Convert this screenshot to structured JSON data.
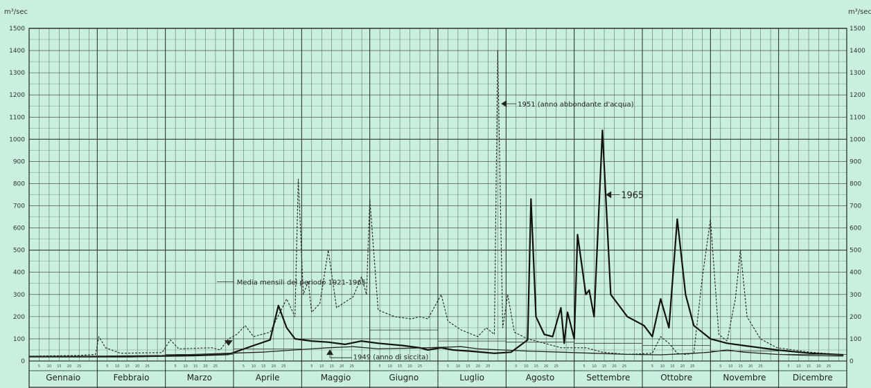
{
  "chart_data": {
    "type": "line",
    "y_unit": "m³/sec",
    "ylim": [
      0,
      1500
    ],
    "y_ticks": [
      0,
      100,
      200,
      300,
      400,
      500,
      600,
      700,
      800,
      900,
      1000,
      1100,
      1200,
      1300,
      1400,
      1500
    ],
    "grid": true,
    "months": [
      "Gennaio",
      "Febbraio",
      "Marzo",
      "Aprile",
      "Maggio",
      "Giugno",
      "Luglio",
      "Agosto",
      "Settembre",
      "Ottobre",
      "Novembre",
      "Dicembre"
    ],
    "day_ticks": [
      "5",
      "10",
      "15",
      "20",
      "25"
    ],
    "series": [
      {
        "name": "1951 (anno abbondante d'acqua)",
        "style": "dashed",
        "points": [
          [
            0,
            22
          ],
          [
            30,
            25
          ],
          [
            40,
            30
          ],
          [
            42,
            110
          ],
          [
            46,
            60
          ],
          [
            55,
            35
          ],
          [
            80,
            38
          ],
          [
            85,
            95
          ],
          [
            90,
            55
          ],
          [
            110,
            60
          ],
          [
            115,
            50
          ],
          [
            120,
            100
          ],
          [
            125,
            120
          ],
          [
            130,
            160
          ],
          [
            135,
            110
          ],
          [
            145,
            130
          ],
          [
            155,
            280
          ],
          [
            160,
            200
          ],
          [
            162,
            820
          ],
          [
            165,
            300
          ],
          [
            168,
            360
          ],
          [
            170,
            220
          ],
          [
            175,
            260
          ],
          [
            180,
            500
          ],
          [
            185,
            240
          ],
          [
            195,
            290
          ],
          [
            200,
            380
          ],
          [
            203,
            300
          ],
          [
            205,
            730
          ],
          [
            210,
            230
          ],
          [
            220,
            200
          ],
          [
            230,
            190
          ],
          [
            235,
            200
          ],
          [
            240,
            190
          ],
          [
            248,
            300
          ],
          [
            252,
            180
          ],
          [
            260,
            140
          ],
          [
            270,
            110
          ],
          [
            275,
            150
          ],
          [
            280,
            120
          ],
          [
            282,
            1400
          ],
          [
            285,
            150
          ],
          [
            288,
            300
          ],
          [
            292,
            130
          ],
          [
            300,
            100
          ],
          [
            310,
            80
          ],
          [
            320,
            60
          ],
          [
            335,
            60
          ],
          [
            345,
            40
          ],
          [
            360,
            30
          ],
          [
            375,
            35
          ],
          [
            380,
            110
          ],
          [
            385,
            80
          ],
          [
            390,
            35
          ],
          [
            395,
            30
          ],
          [
            400,
            35
          ],
          [
            405,
            370
          ],
          [
            410,
            640
          ],
          [
            415,
            120
          ],
          [
            420,
            90
          ],
          [
            425,
            280
          ],
          [
            428,
            500
          ],
          [
            432,
            200
          ],
          [
            440,
            100
          ],
          [
            450,
            60
          ],
          [
            470,
            40
          ],
          [
            490,
            28
          ]
        ]
      },
      {
        "name": "1965",
        "style": "solid",
        "points": [
          [
            0,
            20
          ],
          [
            60,
            20
          ],
          [
            100,
            25
          ],
          [
            120,
            30
          ],
          [
            135,
            70
          ],
          [
            145,
            95
          ],
          [
            150,
            250
          ],
          [
            155,
            150
          ],
          [
            160,
            100
          ],
          [
            170,
            90
          ],
          [
            180,
            85
          ],
          [
            190,
            75
          ],
          [
            200,
            90
          ],
          [
            210,
            80
          ],
          [
            225,
            70
          ],
          [
            235,
            60
          ],
          [
            240,
            50
          ],
          [
            248,
            60
          ],
          [
            255,
            50
          ],
          [
            265,
            45
          ],
          [
            280,
            35
          ],
          [
            290,
            40
          ],
          [
            300,
            95
          ],
          [
            302,
            730
          ],
          [
            305,
            200
          ],
          [
            310,
            120
          ],
          [
            315,
            110
          ],
          [
            320,
            240
          ],
          [
            322,
            80
          ],
          [
            324,
            220
          ],
          [
            328,
            100
          ],
          [
            330,
            570
          ],
          [
            335,
            300
          ],
          [
            337,
            320
          ],
          [
            340,
            200
          ],
          [
            345,
            1040
          ],
          [
            350,
            300
          ],
          [
            360,
            200
          ],
          [
            370,
            160
          ],
          [
            375,
            110
          ],
          [
            380,
            280
          ],
          [
            385,
            150
          ],
          [
            390,
            640
          ],
          [
            395,
            300
          ],
          [
            400,
            160
          ],
          [
            410,
            100
          ],
          [
            420,
            80
          ],
          [
            430,
            70
          ],
          [
            440,
            60
          ],
          [
            450,
            50
          ],
          [
            470,
            35
          ],
          [
            490,
            28
          ]
        ]
      },
      {
        "name": "1949 (anno di siccita)",
        "style": "solid-thin",
        "points": [
          [
            0,
            20
          ],
          [
            40,
            22
          ],
          [
            80,
            25
          ],
          [
            100,
            30
          ],
          [
            120,
            35
          ],
          [
            140,
            40
          ],
          [
            160,
            50
          ],
          [
            170,
            55
          ],
          [
            180,
            60
          ],
          [
            195,
            65
          ],
          [
            210,
            55
          ],
          [
            240,
            60
          ],
          [
            260,
            65
          ],
          [
            270,
            55
          ],
          [
            285,
            50
          ],
          [
            300,
            45
          ],
          [
            320,
            40
          ],
          [
            340,
            35
          ],
          [
            360,
            30
          ],
          [
            380,
            28
          ],
          [
            400,
            35
          ],
          [
            410,
            40
          ],
          [
            420,
            50
          ],
          [
            430,
            40
          ],
          [
            450,
            30
          ],
          [
            470,
            25
          ],
          [
            490,
            22
          ]
        ]
      },
      {
        "name": "Media mensili del periodo 1921-1965",
        "style": "step-thin",
        "values": [
          20,
          22,
          30,
          55,
          100,
          140,
          90,
          85,
          80,
          70,
          45,
          30
        ]
      }
    ],
    "annotations": [
      {
        "text": "1951 (anno abbondante d'acqua)",
        "x": 284,
        "y": 1160
      },
      {
        "text": "1965",
        "x": 347,
        "y": 750
      },
      {
        "text": "Media mensili del periodo 1921-1965",
        "x": 125,
        "y": 357
      },
      {
        "text": "1949 (anno di siccita)",
        "x": 195,
        "y": 20
      }
    ]
  }
}
